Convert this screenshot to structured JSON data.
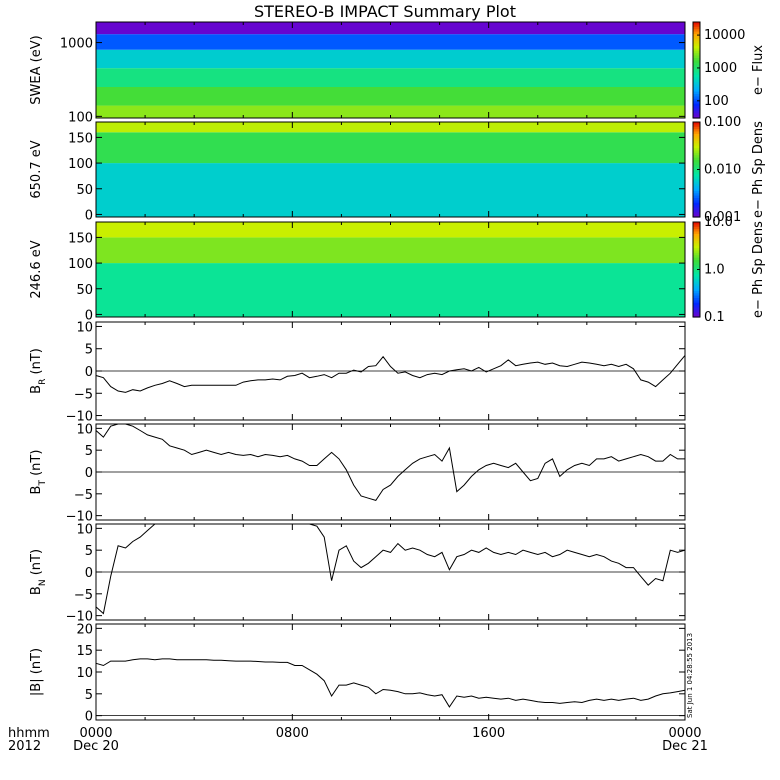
{
  "title": "STEREO-B IMPACT Summary Plot",
  "stamp": "Sat Jun  1 04:28:55 2013",
  "time_axis": {
    "unit_label": "hhmm",
    "year_label": "2012",
    "ticks": [
      {
        "hour": 0,
        "label": "0000",
        "date": "Dec 20"
      },
      {
        "hour": 8,
        "label": "0800",
        "date": ""
      },
      {
        "hour": 16,
        "label": "1600",
        "date": ""
      },
      {
        "hour": 24,
        "label": "0000",
        "date": "Dec 21"
      }
    ]
  },
  "chart_data": [
    {
      "type": "heatmap",
      "name": "swea",
      "ylabel": "SWEA (eV)",
      "y_scale": "log",
      "ylim": [
        95,
        1900
      ],
      "yticks": [
        {
          "v": 100,
          "label": "100"
        },
        {
          "v": 1000,
          "label": "1000"
        }
      ],
      "colorbar_label": "e− Flux",
      "colorbar_scale": "log",
      "colorbar_range": [
        30,
        25000
      ],
      "colorbar_ticks": [
        {
          "v": 100,
          "label": "100"
        },
        {
          "v": 1000,
          "label": "1000"
        },
        {
          "v": 10000,
          "label": "10000"
        }
      ],
      "bands": [
        {
          "y_from": 95,
          "y_to": 140,
          "value": 3000
        },
        {
          "y_from": 140,
          "y_to": 250,
          "value": 1800
        },
        {
          "y_from": 250,
          "y_to": 450,
          "value": 900
        },
        {
          "y_from": 450,
          "y_to": 800,
          "value": 400
        },
        {
          "y_from": 800,
          "y_to": 1300,
          "value": 120
        },
        {
          "y_from": 1300,
          "y_to": 1900,
          "value": 35
        }
      ]
    },
    {
      "type": "heatmap",
      "name": "pad650",
      "ylabel": "650.7 eV",
      "y_scale": "linear",
      "ylim": [
        -5,
        180
      ],
      "yticks": [
        {
          "v": 0,
          "label": "0"
        },
        {
          "v": 50,
          "label": "50"
        },
        {
          "v": 100,
          "label": "100"
        },
        {
          "v": 150,
          "label": "150"
        }
      ],
      "colorbar_label": "e− Ph Sp Dens",
      "colorbar_scale": "log",
      "colorbar_range": [
        0.001,
        0.1
      ],
      "colorbar_ticks": [
        {
          "v": 0.001,
          "label": "0.001"
        },
        {
          "v": 0.01,
          "label": "0.010"
        },
        {
          "v": 0.1,
          "label": "0.100"
        }
      ],
      "bands": [
        {
          "y_from": -5,
          "y_to": 100,
          "value": 0.006
        },
        {
          "y_from": 100,
          "y_to": 160,
          "value": 0.014
        },
        {
          "y_from": 160,
          "y_to": 180,
          "value": 0.03
        }
      ]
    },
    {
      "type": "heatmap",
      "name": "pad246",
      "ylabel": "246.6 eV",
      "y_scale": "linear",
      "ylim": [
        -5,
        180
      ],
      "yticks": [
        {
          "v": 0,
          "label": "0"
        },
        {
          "v": 50,
          "label": "50"
        },
        {
          "v": 100,
          "label": "100"
        },
        {
          "v": 150,
          "label": "150"
        }
      ],
      "colorbar_label": "e− Ph Sp Dens",
      "colorbar_scale": "log",
      "colorbar_range": [
        0.1,
        10
      ],
      "colorbar_ticks": [
        {
          "v": 0.1,
          "label": "0.1"
        },
        {
          "v": 1,
          "label": "1.0"
        },
        {
          "v": 10,
          "label": "10.0"
        }
      ],
      "bands": [
        {
          "y_from": -5,
          "y_to": 100,
          "value": 0.9
        },
        {
          "y_from": 100,
          "y_to": 150,
          "value": 2.2
        },
        {
          "y_from": 150,
          "y_to": 180,
          "value": 3.2
        }
      ]
    },
    {
      "type": "line",
      "name": "br",
      "ylabel": "B",
      "ylabel_sub": "R",
      "ylabel_unit": " (nT)",
      "ylim": [
        -11,
        11
      ],
      "yticks": [
        {
          "v": -10,
          "label": "−10"
        },
        {
          "v": -5,
          "label": "−5"
        },
        {
          "v": 0,
          "label": "0"
        },
        {
          "v": 5,
          "label": "5"
        },
        {
          "v": 10,
          "label": "10"
        }
      ],
      "x": [
        0,
        0.3,
        0.6,
        0.9,
        1.2,
        1.5,
        1.8,
        2.1,
        2.4,
        2.7,
        3.0,
        3.3,
        3.6,
        3.9,
        4.2,
        4.5,
        4.8,
        5.1,
        5.4,
        5.7,
        6.0,
        6.3,
        6.6,
        6.9,
        7.2,
        7.5,
        7.8,
        8.1,
        8.4,
        8.7,
        9.0,
        9.3,
        9.6,
        9.9,
        10.2,
        10.5,
        10.8,
        11.1,
        11.4,
        11.7,
        12.0,
        12.3,
        12.6,
        12.9,
        13.2,
        13.5,
        13.8,
        14.1,
        14.4,
        14.7,
        15.0,
        15.3,
        15.6,
        15.9,
        16.2,
        16.5,
        16.8,
        17.1,
        17.4,
        17.7,
        18.0,
        18.3,
        18.6,
        18.9,
        19.2,
        19.5,
        19.8,
        20.1,
        20.4,
        20.7,
        21.0,
        21.3,
        21.6,
        21.9,
        22.2,
        22.5,
        22.8,
        23.1,
        23.4,
        23.7,
        24.0
      ],
      "y": [
        -1,
        -1.5,
        -3.5,
        -4.5,
        -4.8,
        -4.2,
        -4.5,
        -3.8,
        -3.2,
        -2.8,
        -2.2,
        -2.8,
        -3.5,
        -3.2,
        -3.2,
        -3.2,
        -3.2,
        -3.2,
        -3.2,
        -3.2,
        -2.5,
        -2.2,
        -2.0,
        -2.0,
        -1.8,
        -2.0,
        -1.2,
        -1.0,
        -0.5,
        -1.5,
        -1.2,
        -0.8,
        -1.5,
        -0.5,
        -0.5,
        0.2,
        -0.2,
        1.0,
        1.2,
        3.2,
        1.0,
        -0.5,
        -0.2,
        -1.0,
        -1.5,
        -0.8,
        -0.5,
        -0.8,
        0,
        0.3,
        0.5,
        0,
        0.8,
        -0.2,
        0.5,
        1.2,
        2.5,
        1.2,
        1.5,
        1.8,
        2.0,
        1.5,
        1.8,
        1.2,
        1.0,
        1.5,
        2.0,
        1.8,
        1.5,
        1.2,
        1.5,
        1.0,
        1.5,
        0.5,
        -2.0,
        -2.5,
        -3.5,
        -2.0,
        -0.5,
        1.5,
        3.5
      ]
    },
    {
      "type": "line",
      "name": "bt",
      "ylabel": "B",
      "ylabel_sub": "T",
      "ylabel_unit": " (nT)",
      "ylim": [
        -11,
        11
      ],
      "yticks": [
        {
          "v": -10,
          "label": "−10"
        },
        {
          "v": -5,
          "label": "−5"
        },
        {
          "v": 0,
          "label": "0"
        },
        {
          "v": 5,
          "label": "5"
        },
        {
          "v": 10,
          "label": "10"
        }
      ],
      "x": [
        0,
        0.3,
        0.6,
        0.9,
        1.2,
        1.5,
        1.8,
        2.1,
        2.4,
        2.7,
        3.0,
        3.3,
        3.6,
        3.9,
        4.2,
        4.5,
        4.8,
        5.1,
        5.4,
        5.7,
        6.0,
        6.3,
        6.6,
        6.9,
        7.2,
        7.5,
        7.8,
        8.1,
        8.4,
        8.7,
        9.0,
        9.3,
        9.6,
        9.9,
        10.2,
        10.5,
        10.8,
        11.1,
        11.4,
        11.7,
        12.0,
        12.3,
        12.6,
        12.9,
        13.2,
        13.5,
        13.8,
        14.1,
        14.4,
        14.7,
        15.0,
        15.3,
        15.6,
        15.9,
        16.2,
        16.5,
        16.8,
        17.1,
        17.4,
        17.7,
        18.0,
        18.3,
        18.6,
        18.9,
        19.2,
        19.5,
        19.8,
        20.1,
        20.4,
        20.7,
        21.0,
        21.3,
        21.6,
        21.9,
        22.2,
        22.5,
        22.8,
        23.1,
        23.4,
        23.7,
        24.0
      ],
      "y": [
        9.5,
        8.0,
        10.5,
        11,
        11,
        10.5,
        9.5,
        8.5,
        8.0,
        7.5,
        6.0,
        5.5,
        5.0,
        4.0,
        4.5,
        5.0,
        4.5,
        4.0,
        4.5,
        4.0,
        3.8,
        4.0,
        3.5,
        4.0,
        3.8,
        3.5,
        3.8,
        3.0,
        2.5,
        1.5,
        1.5,
        3.0,
        4.5,
        3.0,
        0.5,
        -3.0,
        -5.5,
        -6.0,
        -6.5,
        -4.0,
        -3.0,
        -1.0,
        0.5,
        2.0,
        3.0,
        3.5,
        4.0,
        2.5,
        5.5,
        -4.5,
        -3.0,
        -1.0,
        0.5,
        1.5,
        2.0,
        1.5,
        1.0,
        2.0,
        0,
        -2.0,
        -1.5,
        2.0,
        3.0,
        -1.0,
        0.5,
        1.5,
        2.0,
        1.5,
        3.0,
        3.0,
        3.5,
        2.5,
        3.0,
        3.5,
        4.0,
        3.5,
        2.5,
        2.5,
        4.0,
        3.0,
        3.0
      ]
    },
    {
      "type": "line",
      "name": "bn",
      "ylabel": "B",
      "ylabel_sub": "N",
      "ylabel_unit": " (nT)",
      "ylim": [
        -11,
        11
      ],
      "yticks": [
        {
          "v": -10,
          "label": "−10"
        },
        {
          "v": -5,
          "label": "−5"
        },
        {
          "v": 0,
          "label": "0"
        },
        {
          "v": 5,
          "label": "5"
        },
        {
          "v": 10,
          "label": "10"
        }
      ],
      "x": [
        0,
        0.3,
        0.6,
        0.9,
        1.2,
        1.5,
        1.8,
        2.1,
        2.4,
        2.7,
        3.0,
        3.3,
        3.6,
        3.9,
        4.2,
        4.5,
        4.8,
        5.1,
        5.4,
        5.7,
        6.0,
        6.3,
        6.6,
        6.9,
        7.2,
        7.5,
        7.8,
        8.1,
        8.4,
        8.7,
        9.0,
        9.3,
        9.6,
        9.9,
        10.2,
        10.5,
        10.8,
        11.1,
        11.4,
        11.7,
        12.0,
        12.3,
        12.6,
        12.9,
        13.2,
        13.5,
        13.8,
        14.1,
        14.4,
        14.7,
        15.0,
        15.3,
        15.6,
        15.9,
        16.2,
        16.5,
        16.8,
        17.1,
        17.4,
        17.7,
        18.0,
        18.3,
        18.6,
        18.9,
        19.2,
        19.5,
        19.8,
        20.1,
        20.4,
        20.7,
        21.0,
        21.3,
        21.6,
        21.9,
        22.2,
        22.5,
        22.8,
        23.1,
        23.4,
        23.7,
        24.0
      ],
      "y": [
        -8.0,
        -9.5,
        -1.0,
        6.0,
        5.5,
        7.0,
        8.0,
        9.5,
        11,
        11,
        11,
        11,
        11,
        11,
        11,
        11,
        11,
        11,
        11,
        11,
        11,
        11,
        11,
        11,
        11,
        11,
        11,
        11,
        11,
        11,
        10.5,
        8.0,
        -2.0,
        5.0,
        6.0,
        2.5,
        1.0,
        2.0,
        3.5,
        5.0,
        4.5,
        6.5,
        5.0,
        5.5,
        5.0,
        4.0,
        3.5,
        4.5,
        0.5,
        3.5,
        4.0,
        5.0,
        4.5,
        5.5,
        4.5,
        4.0,
        4.5,
        4.0,
        5.0,
        4.5,
        4.0,
        4.5,
        3.5,
        4.0,
        5.0,
        4.5,
        4.0,
        3.5,
        4.0,
        3.5,
        2.5,
        2.0,
        1.0,
        1.0,
        -1.0,
        -3.0,
        -1.5,
        -2.0,
        5.0,
        4.5,
        5.0
      ]
    },
    {
      "type": "line",
      "name": "bmag",
      "ylabel": "|B|",
      "ylabel_sub": "",
      "ylabel_unit": " (nT)",
      "ylim": [
        -1,
        21
      ],
      "yticks": [
        {
          "v": 0,
          "label": "0"
        },
        {
          "v": 5,
          "label": "5"
        },
        {
          "v": 10,
          "label": "10"
        },
        {
          "v": 15,
          "label": "15"
        },
        {
          "v": 20,
          "label": "20"
        }
      ],
      "x": [
        0,
        0.3,
        0.6,
        0.9,
        1.2,
        1.5,
        1.8,
        2.1,
        2.4,
        2.7,
        3.0,
        3.3,
        3.6,
        3.9,
        4.2,
        4.5,
        4.8,
        5.1,
        5.4,
        5.7,
        6.0,
        6.3,
        6.6,
        6.9,
        7.2,
        7.5,
        7.8,
        8.1,
        8.4,
        8.7,
        9.0,
        9.3,
        9.6,
        9.9,
        10.2,
        10.5,
        10.8,
        11.1,
        11.4,
        11.7,
        12.0,
        12.3,
        12.6,
        12.9,
        13.2,
        13.5,
        13.8,
        14.1,
        14.4,
        14.7,
        15.0,
        15.3,
        15.6,
        15.9,
        16.2,
        16.5,
        16.8,
        17.1,
        17.4,
        17.7,
        18.0,
        18.3,
        18.6,
        18.9,
        19.2,
        19.5,
        19.8,
        20.1,
        20.4,
        20.7,
        21.0,
        21.3,
        21.6,
        21.9,
        22.2,
        22.5,
        22.8,
        23.1,
        23.4,
        23.7,
        24.0
      ],
      "y": [
        12.0,
        11.5,
        12.5,
        12.5,
        12.5,
        12.8,
        13.0,
        13.0,
        12.8,
        13.0,
        13.0,
        12.8,
        12.8,
        12.8,
        12.8,
        12.8,
        12.7,
        12.7,
        12.6,
        12.5,
        12.5,
        12.5,
        12.4,
        12.3,
        12.3,
        12.2,
        12.2,
        11.5,
        11.5,
        10.5,
        9.5,
        8.0,
        4.5,
        7.0,
        7.0,
        7.5,
        7.0,
        6.5,
        5.0,
        6.0,
        5.8,
        5.5,
        5.0,
        5.0,
        5.2,
        4.8,
        4.5,
        4.8,
        2.0,
        4.5,
        4.2,
        4.5,
        4.0,
        4.2,
        4.0,
        3.8,
        4.0,
        3.5,
        3.8,
        3.5,
        3.2,
        3.0,
        3.0,
        2.8,
        3.0,
        3.2,
        3.0,
        3.5,
        3.8,
        3.5,
        3.8,
        3.5,
        3.8,
        4.0,
        3.5,
        3.8,
        4.5,
        5.0,
        5.2,
        5.5,
        5.8
      ]
    }
  ]
}
